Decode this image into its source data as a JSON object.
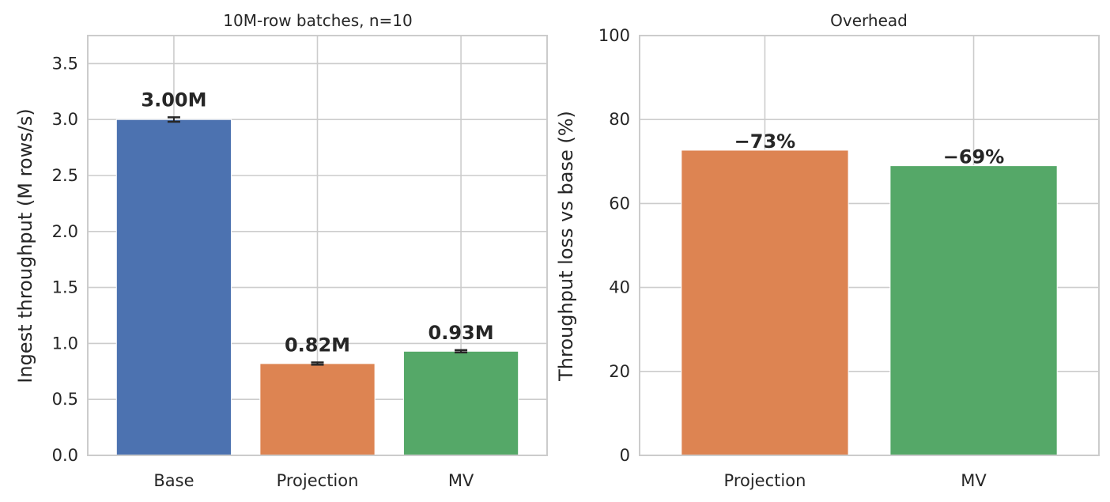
{
  "colors": {
    "base": "#4c72b0",
    "projection": "#dd8452",
    "mv": "#55a868",
    "grid": "#cccccc",
    "text": "#262626",
    "errorbar": "#262626"
  },
  "chart_data": [
    {
      "type": "bar",
      "title": "10M-row batches, n=10",
      "xlabel": "",
      "ylabel": "Ingest throughput (M rows/s)",
      "categories": [
        "Base",
        "Projection",
        "MV"
      ],
      "values": [
        3.0,
        0.82,
        0.93
      ],
      "errors": [
        0.02,
        0.01,
        0.01
      ],
      "data_labels": [
        "3.00M",
        "0.82M",
        "0.93M"
      ],
      "bar_colors": [
        "#4c72b0",
        "#dd8452",
        "#55a868"
      ],
      "ylim": [
        0,
        3.75
      ],
      "yticks": [
        "0.0",
        "0.5",
        "1.0",
        "1.5",
        "2.0",
        "2.5",
        "3.0",
        "3.5"
      ],
      "grid": true
    },
    {
      "type": "bar",
      "title": "Overhead",
      "xlabel": "",
      "ylabel": "Throughput loss vs base (%)",
      "categories": [
        "Projection",
        "MV"
      ],
      "values": [
        72.7,
        69.0
      ],
      "data_labels": [
        "−73%",
        "−69%"
      ],
      "bar_colors": [
        "#dd8452",
        "#55a868"
      ],
      "ylim": [
        0,
        100
      ],
      "yticks": [
        "0",
        "20",
        "40",
        "60",
        "80",
        "100"
      ],
      "grid": true
    }
  ]
}
